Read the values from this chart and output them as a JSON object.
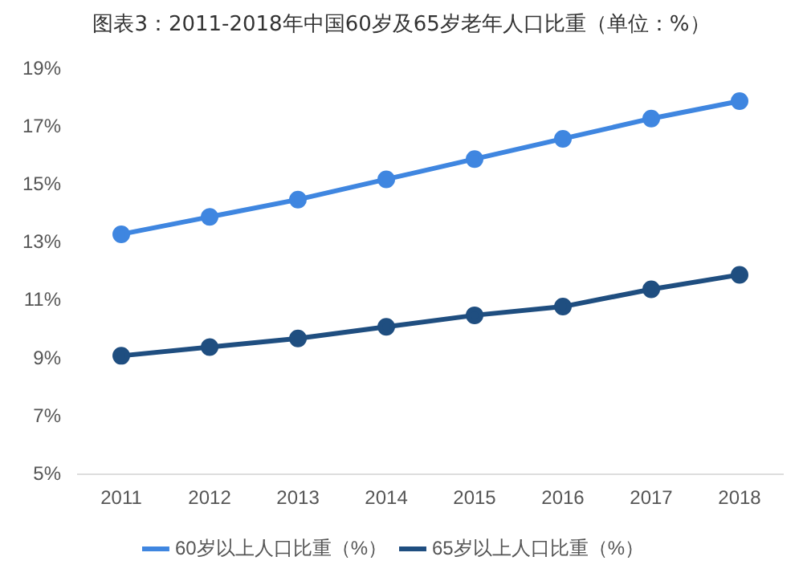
{
  "chart_data": {
    "type": "line",
    "title": "图表3：2011-2018年中国60岁及65岁老年人口比重（单位：%）",
    "categories": [
      "2011",
      "2012",
      "2013",
      "2014",
      "2015",
      "2016",
      "2017",
      "2018"
    ],
    "series": [
      {
        "name": "60岁以上人口比重（%）",
        "color": "#3f86e0",
        "values": [
          13.3,
          13.9,
          14.5,
          15.2,
          15.9,
          16.6,
          17.3,
          17.9
        ]
      },
      {
        "name": "65岁以上人口比重（%）",
        "color": "#1f4e80",
        "values": [
          9.1,
          9.4,
          9.7,
          10.1,
          10.5,
          10.8,
          11.4,
          11.9
        ]
      }
    ],
    "ylim": [
      5,
      19
    ],
    "yticks": [
      {
        "value": 5,
        "label": "5%"
      },
      {
        "value": 7,
        "label": "7%"
      },
      {
        "value": 9,
        "label": "9%"
      },
      {
        "value": 11,
        "label": "11%"
      },
      {
        "value": 13,
        "label": "13%"
      },
      {
        "value": 15,
        "label": "15%"
      },
      {
        "value": 17,
        "label": "17%"
      },
      {
        "value": 19,
        "label": "19%"
      }
    ],
    "grid": false,
    "legend": "bottom",
    "marker": "circle",
    "line_style": "solid"
  }
}
